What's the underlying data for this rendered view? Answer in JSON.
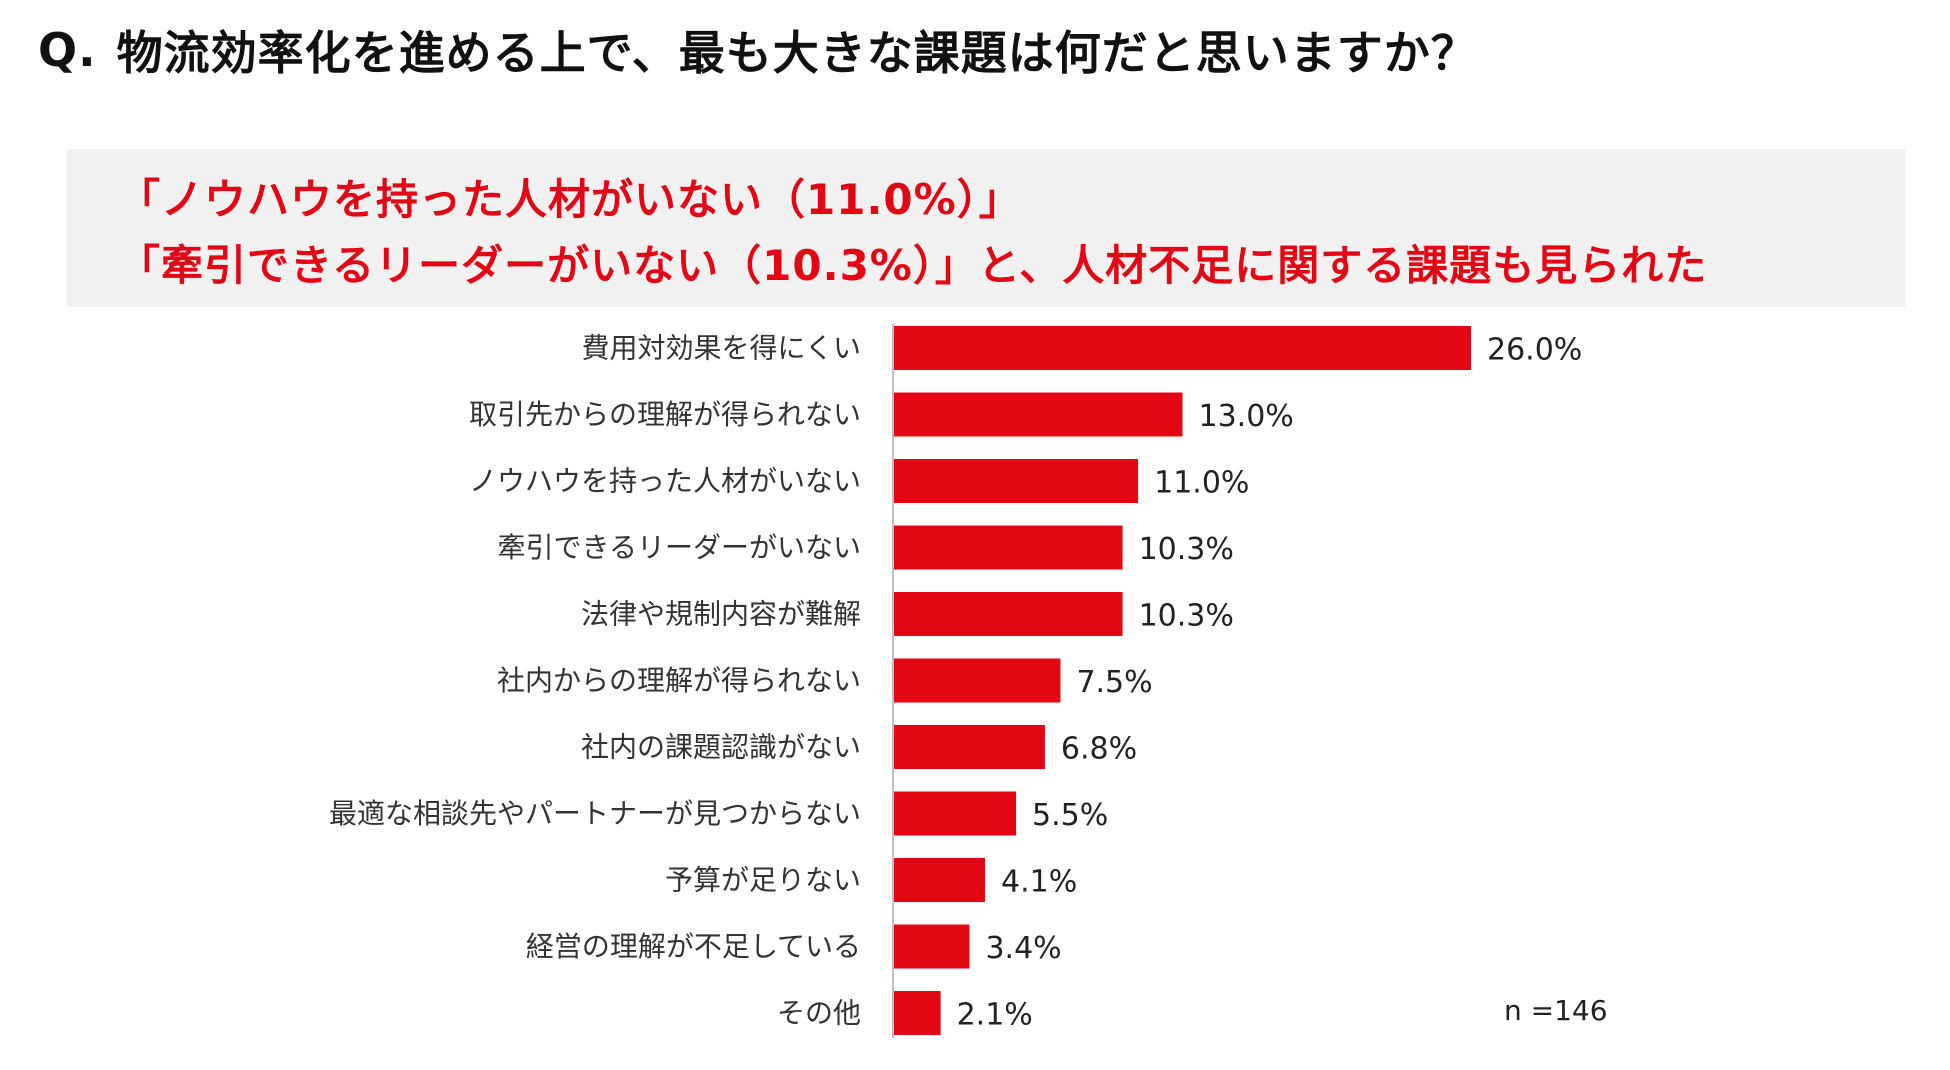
{
  "question": {
    "prefix": "Q.",
    "text": "物流効率化を進める上で、最も大きな課題は何だと思いますか？"
  },
  "highlight": {
    "line1": "「ノウハウを持った人材がいない（11.0%）」",
    "line2": "「牽引できるリーダーがいない（10.3%）」と、人材不足に関する課題も見られた"
  },
  "sample_size": "n =146",
  "colors": {
    "bar": "#e30613",
    "highlight_text": "#e30613",
    "highlight_bg": "#f1f1f1",
    "axis": "#bfbfbf"
  },
  "chart_data": {
    "type": "bar",
    "orientation": "horizontal",
    "categories": [
      "費用対効果を得にくい",
      "取引先からの理解が得られない",
      "ノウハウを持った人材がいない",
      "牽引できるリーダーがいない",
      "法律や規制内容が難解",
      "社内からの理解が得られない",
      "社内の課題認識がない",
      "最適な相談先やパートナーが見つからない",
      "予算が足りない",
      "経営の理解が不足している",
      "その他"
    ],
    "values": [
      26.0,
      13.0,
      11.0,
      10.3,
      10.3,
      7.5,
      6.8,
      5.5,
      4.1,
      3.4,
      2.1
    ],
    "value_labels": [
      "26.0%",
      "13.0%",
      "11.0%",
      "10.3%",
      "10.3%",
      "7.5%",
      "6.8%",
      "5.5%",
      "4.1%",
      "3.4%",
      "2.1%"
    ],
    "unit": "%",
    "xlim": [
      0,
      40
    ],
    "grid": false,
    "legend": "none"
  }
}
